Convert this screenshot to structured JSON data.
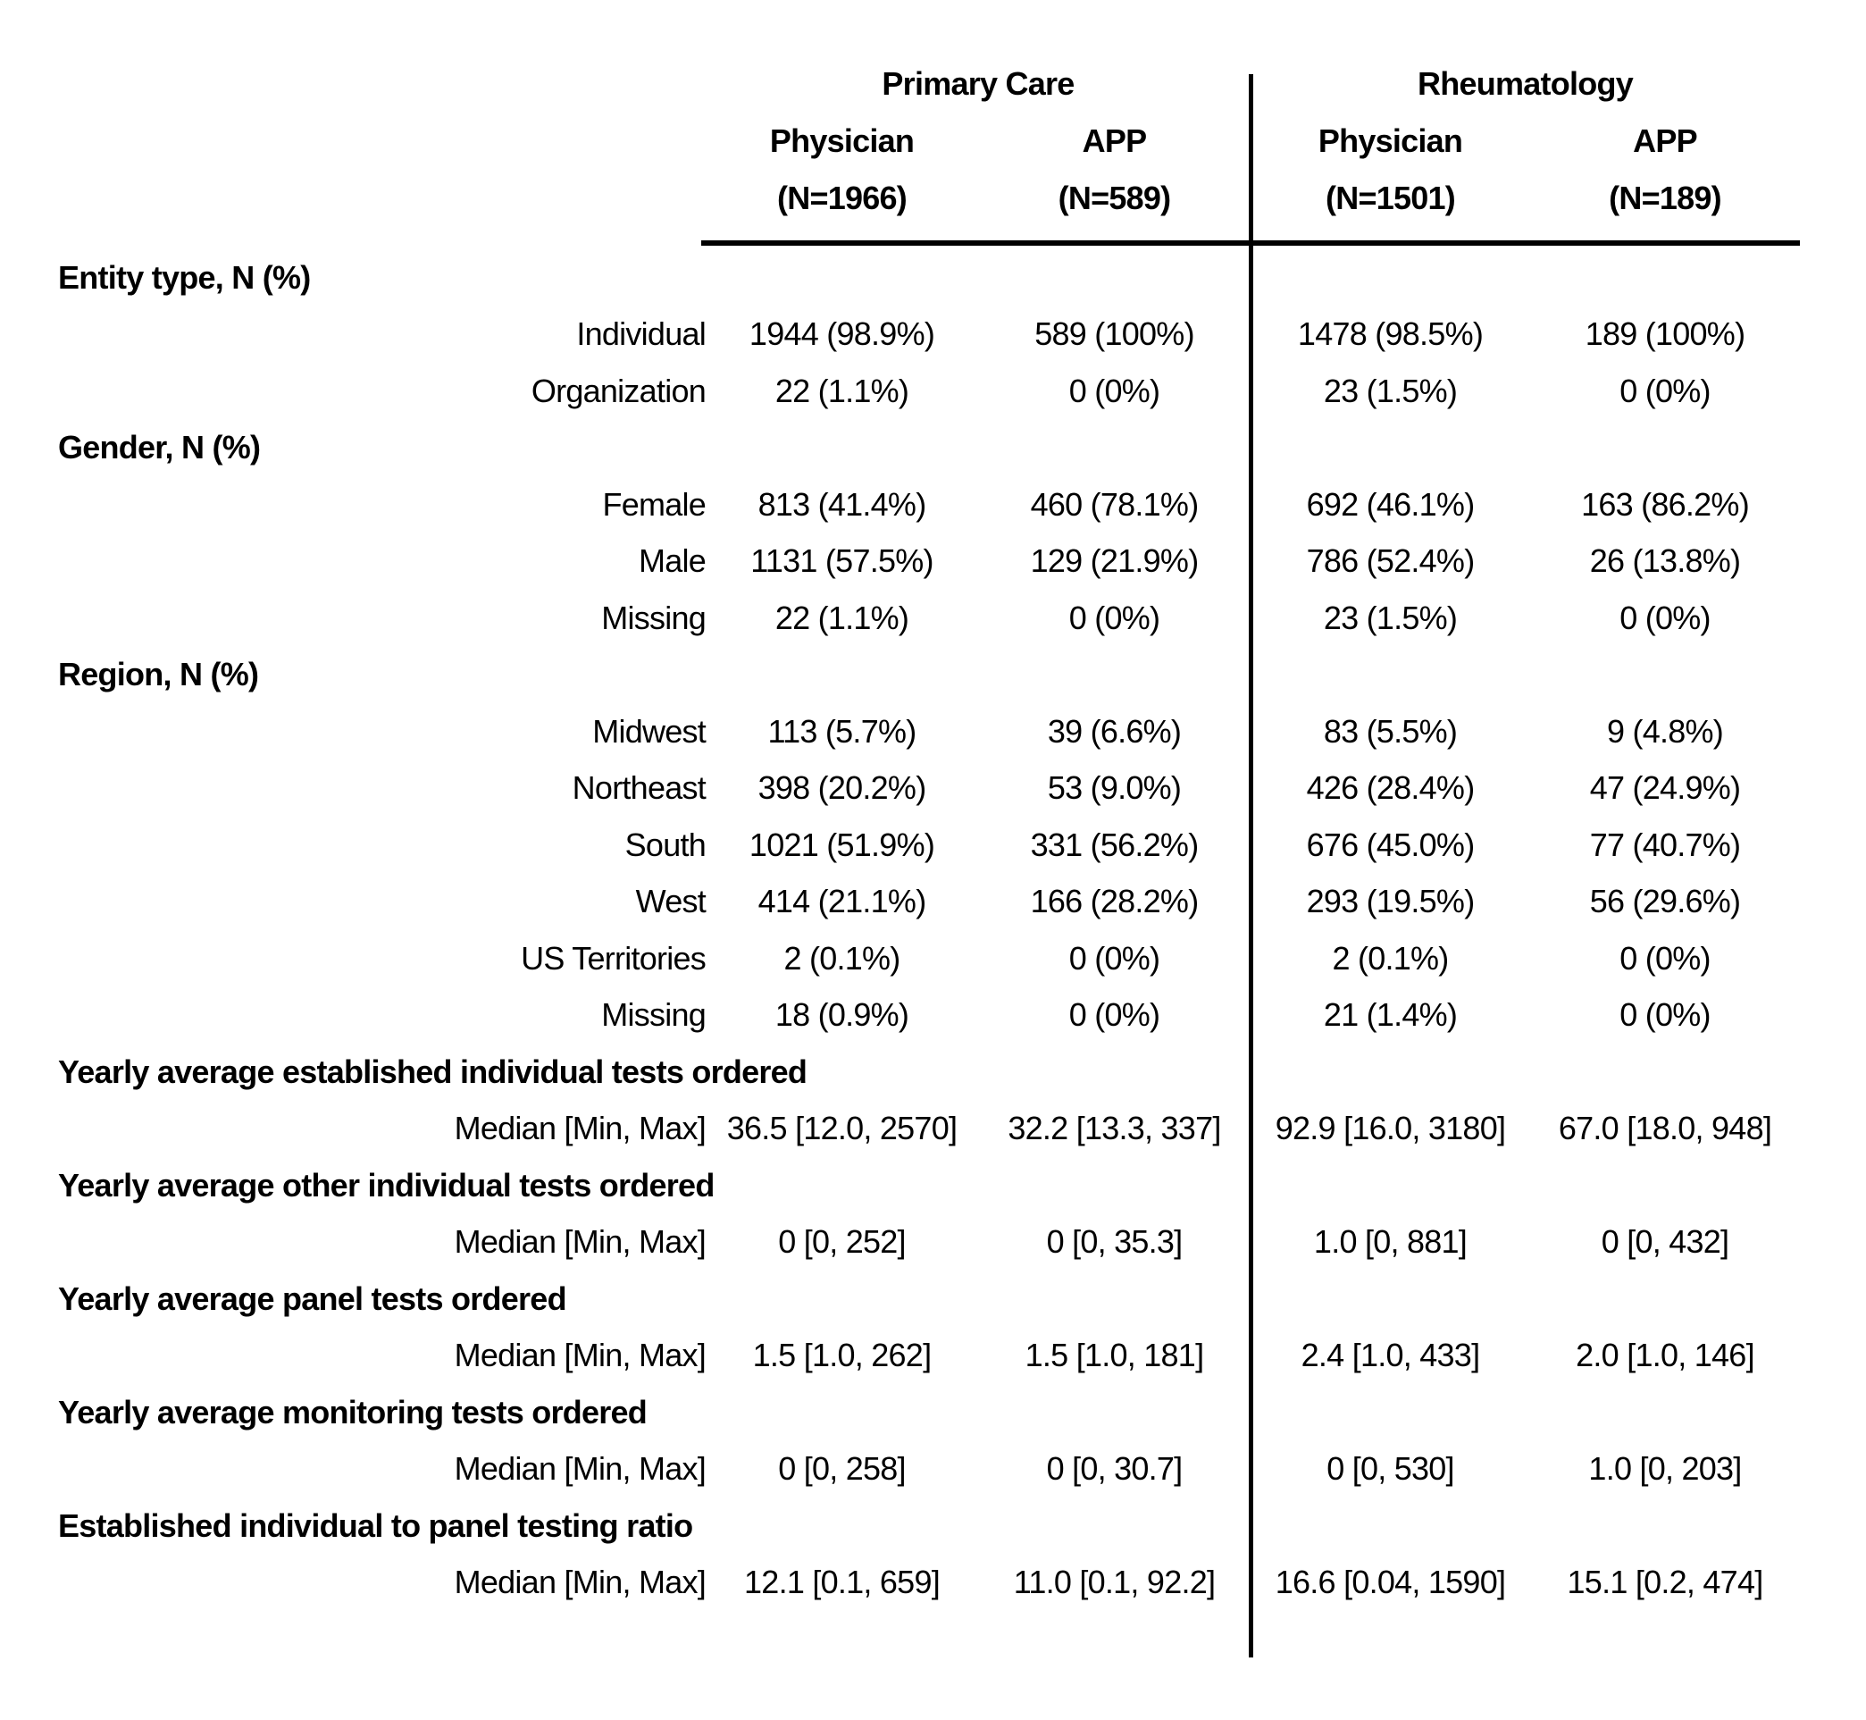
{
  "colors": {
    "background": "#ffffff",
    "text": "#000000",
    "rule": "#000000"
  },
  "header": {
    "groups": [
      {
        "label": "Primary Care"
      },
      {
        "label": "Rheumatology"
      }
    ],
    "columns": [
      {
        "group": "Primary Care",
        "role": "Physician",
        "n": "(N=1966)"
      },
      {
        "group": "Primary Care",
        "role": "APP",
        "n": "(N=589)"
      },
      {
        "group": "Rheumatology",
        "role": "Physician",
        "n": "(N=1501)"
      },
      {
        "group": "Rheumatology",
        "role": "APP",
        "n": "(N=189)"
      }
    ]
  },
  "table": {
    "rows": [
      {
        "type": "section",
        "label": "Entity type, N (%)"
      },
      {
        "type": "data",
        "label": "Individual",
        "values": [
          "1944 (98.9%)",
          "589 (100%)",
          "1478 (98.5%)",
          "189 (100%)"
        ]
      },
      {
        "type": "data",
        "label": "Organization",
        "values": [
          "22 (1.1%)",
          "0 (0%)",
          "23 (1.5%)",
          "0 (0%)"
        ]
      },
      {
        "type": "section",
        "label": "Gender, N (%)"
      },
      {
        "type": "data",
        "label": "Female",
        "values": [
          "813 (41.4%)",
          "460 (78.1%)",
          "692 (46.1%)",
          "163 (86.2%)"
        ]
      },
      {
        "type": "data",
        "label": "Male",
        "values": [
          "1131 (57.5%)",
          "129 (21.9%)",
          "786 (52.4%)",
          "26 (13.8%)"
        ]
      },
      {
        "type": "data",
        "label": "Missing",
        "values": [
          "22 (1.1%)",
          "0 (0%)",
          "23 (1.5%)",
          "0 (0%)"
        ]
      },
      {
        "type": "section",
        "label": "Region, N (%)"
      },
      {
        "type": "data",
        "label": "Midwest",
        "values": [
          "113 (5.7%)",
          "39 (6.6%)",
          "83 (5.5%)",
          "9 (4.8%)"
        ]
      },
      {
        "type": "data",
        "label": "Northeast",
        "values": [
          "398 (20.2%)",
          "53 (9.0%)",
          "426 (28.4%)",
          "47 (24.9%)"
        ]
      },
      {
        "type": "data",
        "label": "South",
        "values": [
          "1021 (51.9%)",
          "331 (56.2%)",
          "676 (45.0%)",
          "77 (40.7%)"
        ]
      },
      {
        "type": "data",
        "label": "West",
        "values": [
          "414 (21.1%)",
          "166 (28.2%)",
          "293 (19.5%)",
          "56 (29.6%)"
        ]
      },
      {
        "type": "data",
        "label": "US Territories",
        "values": [
          "2 (0.1%)",
          "0 (0%)",
          "2 (0.1%)",
          "0 (0%)"
        ]
      },
      {
        "type": "data",
        "label": "Missing",
        "values": [
          "18 (0.9%)",
          "0 (0%)",
          "21 (1.4%)",
          "0 (0%)"
        ]
      },
      {
        "type": "section",
        "label": "Yearly average established individual tests ordered"
      },
      {
        "type": "data",
        "label": "Median [Min, Max]",
        "values": [
          "36.5 [12.0, 2570]",
          "32.2 [13.3, 337]",
          "92.9 [16.0, 3180]",
          "67.0 [18.0, 948]"
        ]
      },
      {
        "type": "section",
        "label": "Yearly average other individual tests ordered"
      },
      {
        "type": "data",
        "label": "Median [Min, Max]",
        "values": [
          "0 [0, 252]",
          "0 [0, 35.3]",
          "1.0 [0, 881]",
          "0 [0, 432]"
        ]
      },
      {
        "type": "section",
        "label": "Yearly average panel tests ordered"
      },
      {
        "type": "data",
        "label": "Median [Min, Max]",
        "values": [
          "1.5 [1.0, 262]",
          "1.5 [1.0, 181]",
          "2.4 [1.0, 433]",
          "2.0 [1.0, 146]"
        ]
      },
      {
        "type": "section",
        "label": "Yearly average monitoring tests ordered"
      },
      {
        "type": "data",
        "label": "Median [Min, Max]",
        "values": [
          "0 [0, 258]",
          "0 [0, 30.7]",
          "0 [0, 530]",
          "1.0 [0, 203]"
        ]
      },
      {
        "type": "section",
        "label": "Established individual to panel testing ratio"
      },
      {
        "type": "data",
        "label": "Median [Min, Max]",
        "values": [
          "12.1 [0.1, 659]",
          "11.0 [0.1, 92.2]",
          "16.6 [0.04, 1590]",
          "15.1 [0.2, 474]"
        ]
      }
    ]
  }
}
